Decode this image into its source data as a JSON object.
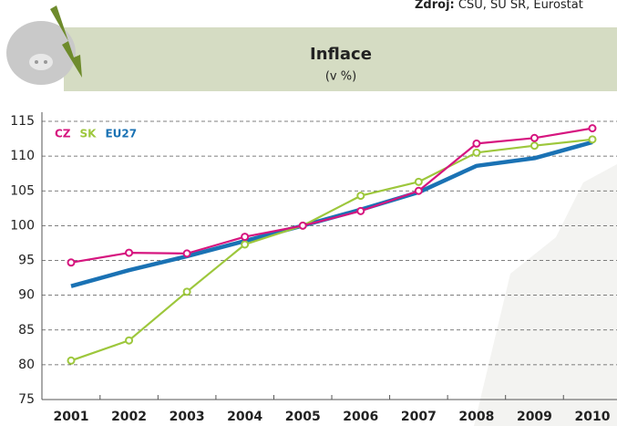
{
  "chart_data": {
    "type": "line",
    "title": "Inflace",
    "subtitle": "(v %)",
    "source_label": "Zdroj:",
    "source": "ČSÚ, ŠÚ SR, Eurostat",
    "categories": [
      "2001",
      "2002",
      "2003",
      "2004",
      "2005",
      "2006",
      "2007",
      "2008",
      "2009",
      "2010"
    ],
    "series": [
      {
        "name": "CZ",
        "color": "#d6157f",
        "values": [
          94.7,
          96.1,
          96.0,
          98.4,
          100,
          102.1,
          105.0,
          111.8,
          112.6,
          114.0
        ]
      },
      {
        "name": "SK",
        "color": "#9dc73c",
        "values": [
          80.6,
          83.5,
          90.5,
          97.3,
          100,
          104.3,
          106.3,
          110.5,
          111.5,
          112.4
        ]
      },
      {
        "name": "EU27",
        "color": "#1a72b4",
        "values": [
          91.3,
          93.6,
          95.6,
          97.8,
          100,
          102.3,
          104.8,
          108.6,
          109.7,
          112.0
        ]
      }
    ],
    "ylim": [
      75,
      115
    ],
    "yticks": [
      75,
      80,
      85,
      90,
      95,
      100,
      105,
      110,
      115
    ],
    "grid": true
  }
}
